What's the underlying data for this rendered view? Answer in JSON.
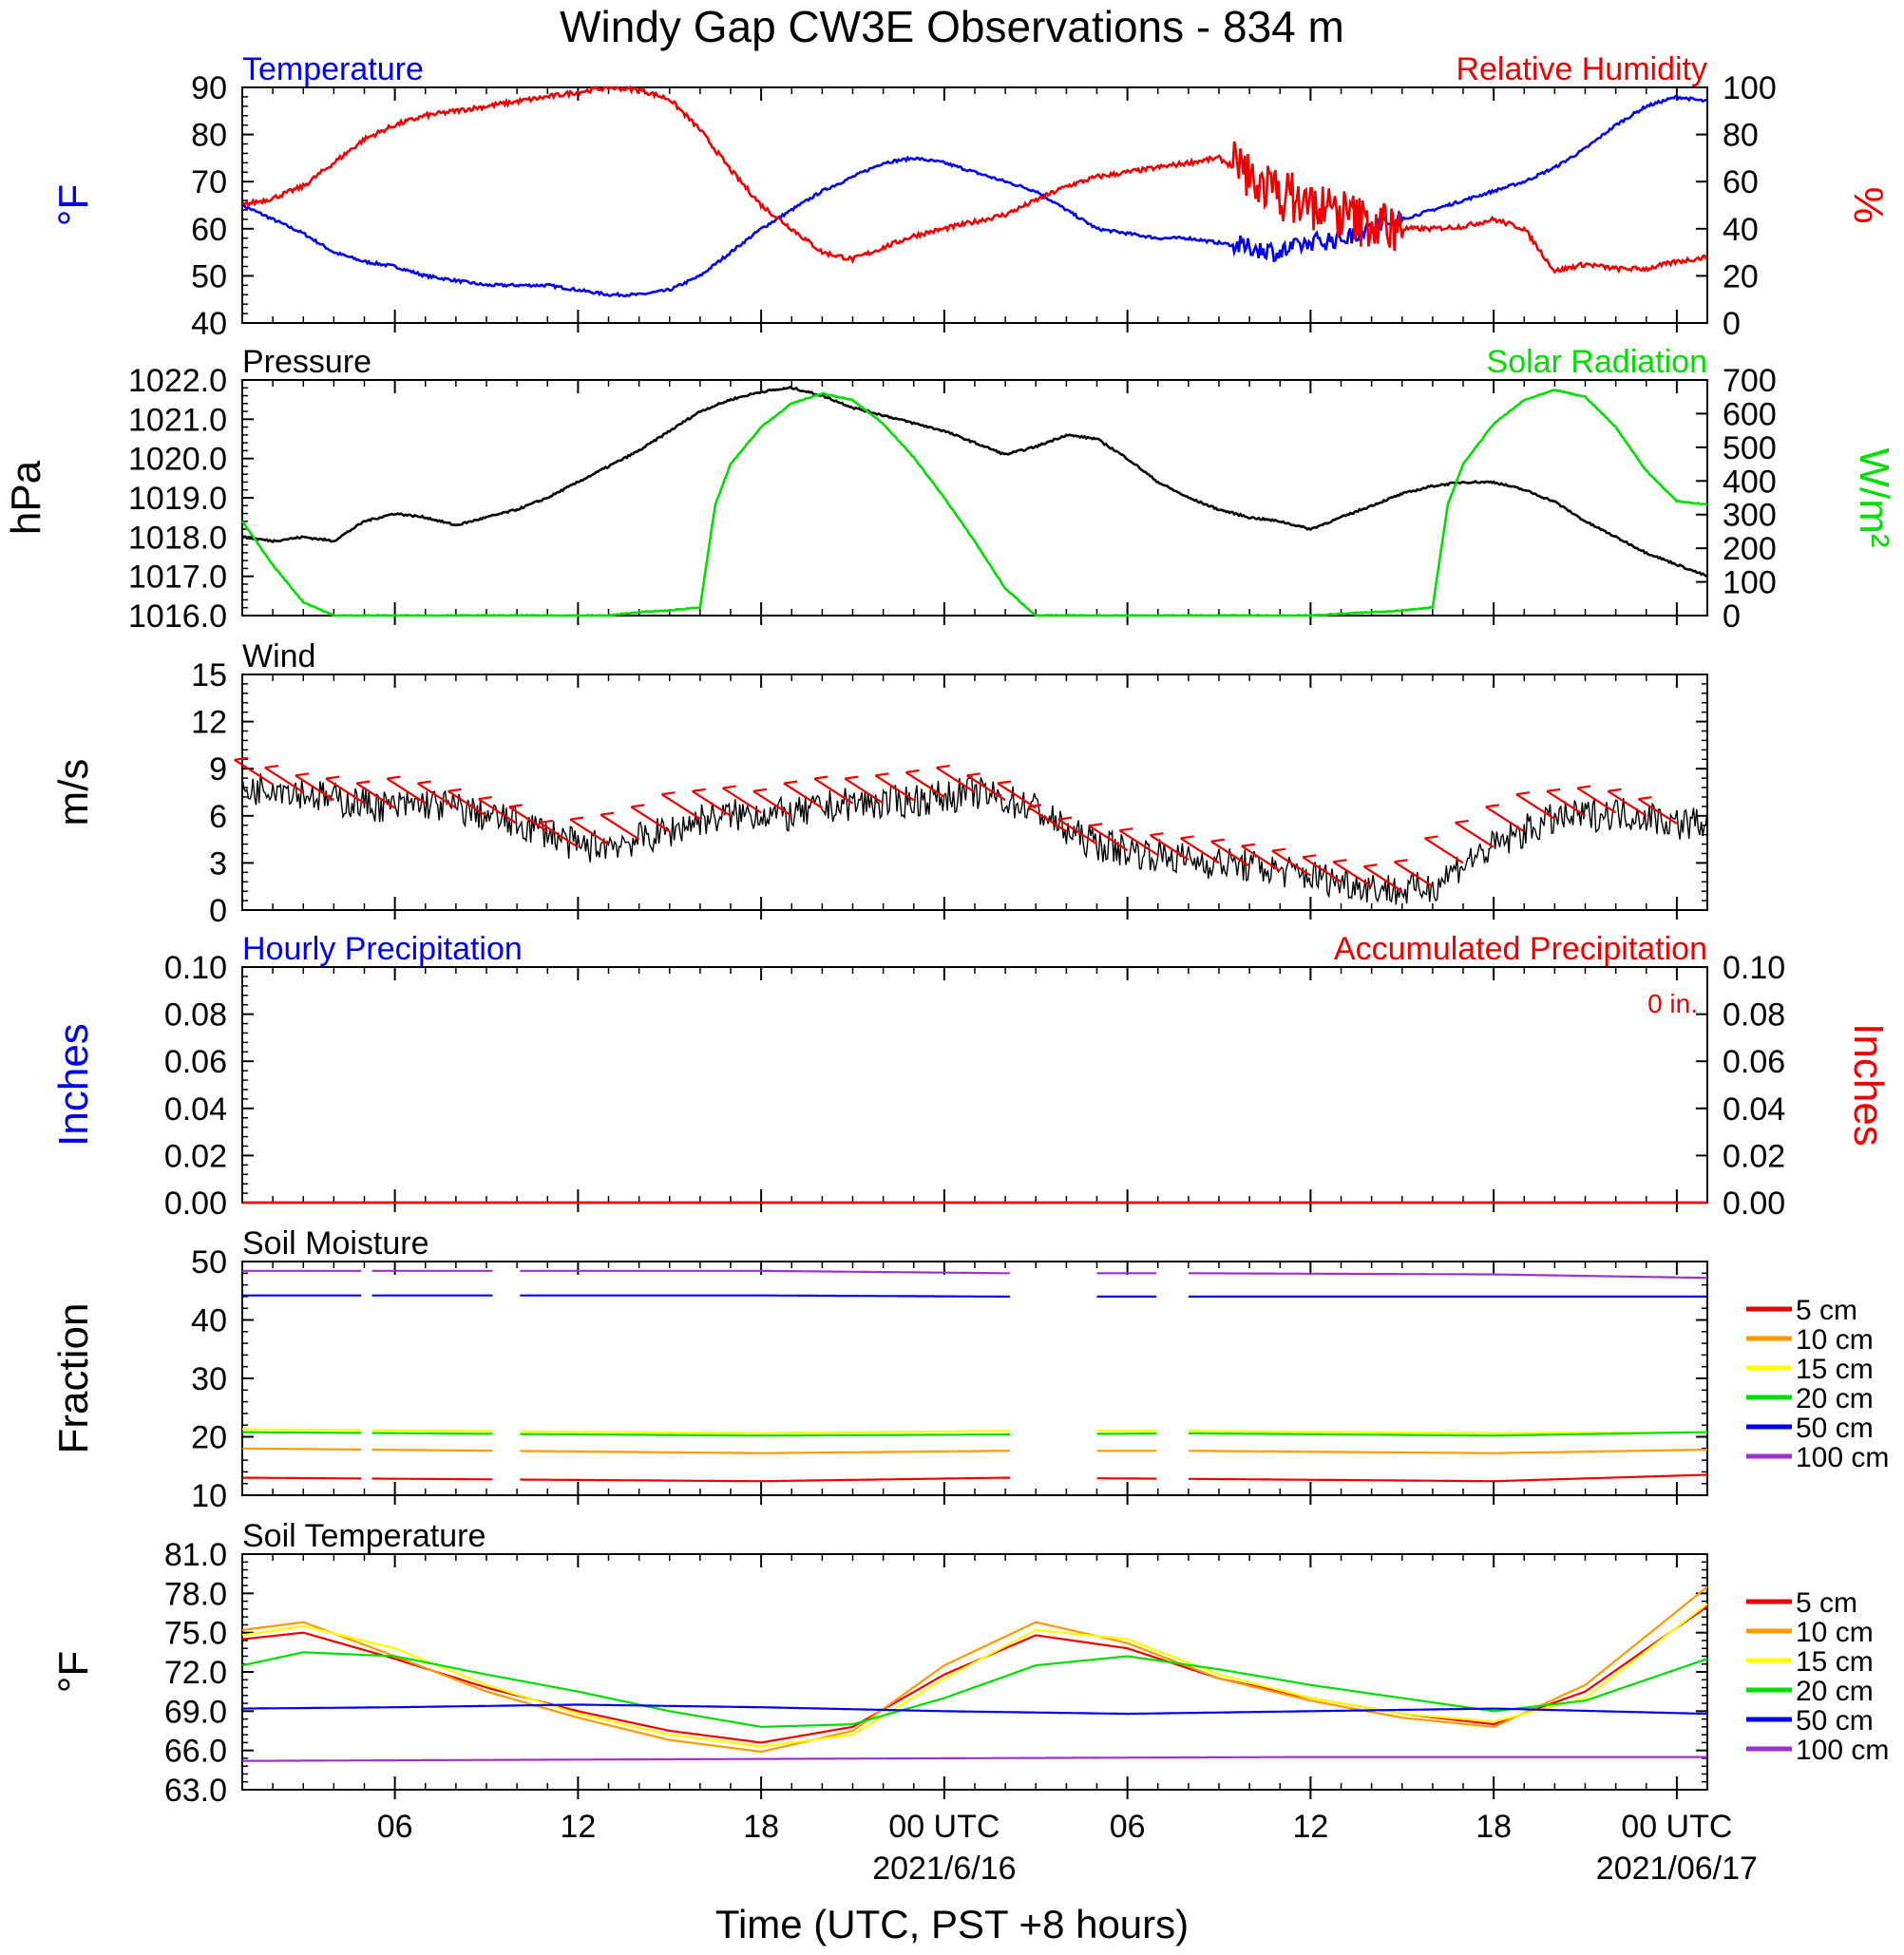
{
  "title": "Windy Gap CW3E Observations - 834 m",
  "x_axis": {
    "label": "Time (UTC, PST +8 hours)",
    "tick_labels": [
      "06",
      "12",
      "18",
      "00 UTC",
      "06",
      "12",
      "18",
      "00 UTC"
    ],
    "tick_hours": [
      6,
      12,
      18,
      24,
      30,
      36,
      42,
      48
    ],
    "dates": [
      {
        "hour": 24,
        "text": "2021/6/16"
      },
      {
        "hour": 48,
        "text": "2021/06/17"
      }
    ],
    "range_hours": [
      1,
      49
    ]
  },
  "colors": {
    "blue": "#0000ee",
    "red": "#ee0000",
    "green": "#00dd00",
    "black": "#000000",
    "orange": "#ff9900",
    "yellow": "#ffff00",
    "purple": "#9933cc"
  },
  "chart_data": [
    {
      "type": "line",
      "id": "temp_rh",
      "left_title": "Temperature",
      "right_title": "Relative Humidity",
      "ylabel_left": "°F",
      "ylabel_right": "%",
      "ylim_left": [
        40,
        90
      ],
      "ylim_right": [
        0,
        100
      ],
      "yticks_left": [
        "90",
        "80",
        "70",
        "60",
        "50",
        "40"
      ],
      "yticks_right": [
        "100",
        "80",
        "60",
        "40",
        "20",
        "0"
      ],
      "series": [
        {
          "axis": "left",
          "color": "#0000ee",
          "x": [
            1,
            2,
            3,
            4,
            5,
            6,
            7,
            8,
            9,
            10,
            11,
            12,
            13,
            14,
            15,
            16,
            17,
            18,
            19,
            20,
            21,
            22,
            23,
            24,
            25,
            26,
            27,
            28,
            29,
            30,
            31,
            32,
            33,
            34,
            35,
            36,
            37,
            38,
            39,
            40,
            41,
            42,
            43,
            44,
            45,
            46,
            47,
            48,
            49
          ],
          "y": [
            65,
            62,
            59,
            55,
            53,
            52,
            50,
            49,
            48,
            48,
            48,
            47,
            46,
            46,
            47,
            50,
            55,
            60,
            64,
            68,
            71,
            74,
            75,
            74,
            72,
            70,
            68,
            64,
            60,
            59,
            58,
            58,
            57,
            56,
            55,
            57,
            58,
            60,
            62,
            64,
            66,
            68,
            70,
            73,
            77,
            82,
            86,
            88,
            87
          ]
        },
        {
          "axis": "right",
          "color": "#ee0000",
          "x": [
            1,
            2,
            3,
            4,
            5,
            6,
            7,
            8,
            9,
            10,
            11,
            12,
            13,
            14,
            15,
            16,
            17,
            18,
            19,
            20,
            21,
            22,
            23,
            24,
            25,
            26,
            27,
            28,
            29,
            30,
            31,
            32,
            33,
            34,
            35,
            36,
            37,
            38,
            39,
            40,
            41,
            42,
            43,
            44,
            45,
            46,
            47,
            48,
            49
          ],
          "y": [
            50,
            53,
            58,
            68,
            78,
            84,
            88,
            90,
            92,
            94,
            96,
            98,
            100,
            99,
            95,
            82,
            65,
            50,
            40,
            30,
            27,
            32,
            37,
            40,
            43,
            46,
            52,
            58,
            62,
            64,
            66,
            68,
            70,
            62,
            55,
            50,
            46,
            42,
            40,
            40,
            41,
            44,
            40,
            22,
            25,
            23,
            23,
            26,
            28
          ]
        }
      ]
    },
    {
      "type": "line",
      "id": "pressure_solar",
      "left_title": "Pressure",
      "right_title": "Solar Radiation",
      "ylabel_left": "hPa",
      "ylabel_right": "W/m²",
      "ylim_left": [
        1016,
        1022
      ],
      "ylim_right": [
        0,
        700
      ],
      "yticks_left": [
        "1022.0",
        "1021.0",
        "1020.0",
        "1019.0",
        "1018.0",
        "1017.0",
        "1016.0"
      ],
      "yticks_right": [
        "700",
        "600",
        "500",
        "400",
        "300",
        "200",
        "100",
        "0"
      ],
      "series": [
        {
          "axis": "left",
          "color": "#000000",
          "x": [
            1,
            2,
            3,
            4,
            5,
            6,
            7,
            8,
            9,
            10,
            11,
            12,
            13,
            14,
            15,
            16,
            17,
            18,
            19,
            20,
            21,
            22,
            23,
            24,
            25,
            26,
            27,
            28,
            29,
            30,
            31,
            32,
            33,
            34,
            35,
            36,
            37,
            38,
            39,
            40,
            41,
            42,
            43,
            44,
            45,
            46,
            47,
            48,
            49
          ],
          "y": [
            1018.0,
            1017.9,
            1018.0,
            1017.9,
            1018.4,
            1018.6,
            1018.5,
            1018.3,
            1018.5,
            1018.7,
            1019.0,
            1019.4,
            1019.8,
            1020.2,
            1020.7,
            1021.2,
            1021.5,
            1021.7,
            1021.8,
            1021.6,
            1021.3,
            1021.1,
            1020.9,
            1020.7,
            1020.4,
            1020.1,
            1020.3,
            1020.6,
            1020.5,
            1020.0,
            1019.4,
            1019.0,
            1018.7,
            1018.5,
            1018.4,
            1018.2,
            1018.5,
            1018.8,
            1019.1,
            1019.3,
            1019.4,
            1019.4,
            1019.2,
            1018.9,
            1018.4,
            1018.0,
            1017.6,
            1017.3,
            1017.0
          ]
        },
        {
          "axis": "right",
          "color": "#00dd00",
          "x": [
            1,
            2,
            3,
            4,
            5,
            6,
            7,
            8,
            9,
            10,
            11,
            12,
            13,
            14,
            15,
            16,
            16.5,
            17,
            18,
            19,
            20,
            21,
            22,
            23,
            24,
            25,
            26,
            27,
            28,
            29,
            30,
            31,
            32,
            33,
            34,
            35,
            36,
            37,
            38,
            39,
            40,
            40.5,
            41,
            42,
            43,
            44,
            45,
            46,
            47,
            48,
            49
          ],
          "y": [
            280,
            150,
            40,
            0,
            0,
            0,
            0,
            0,
            0,
            0,
            0,
            0,
            0,
            10,
            15,
            25,
            330,
            450,
            560,
            630,
            660,
            640,
            570,
            470,
            350,
            220,
            80,
            0,
            0,
            0,
            0,
            0,
            0,
            0,
            0,
            0,
            0,
            5,
            10,
            15,
            25,
            330,
            450,
            570,
            640,
            670,
            650,
            560,
            430,
            340,
            330
          ]
        }
      ]
    },
    {
      "type": "line",
      "id": "wind",
      "left_title": "Wind",
      "ylabel_left": "m/s",
      "ylim_left": [
        0,
        15
      ],
      "yticks_left": [
        "15",
        "12",
        "9",
        "6",
        "3",
        "0"
      ],
      "series": [
        {
          "axis": "left",
          "color": "#000000",
          "x": [
            1,
            2,
            3,
            4,
            5,
            6,
            7,
            8,
            9,
            10,
            11,
            12,
            13,
            14,
            15,
            16,
            17,
            18,
            19,
            20,
            21,
            22,
            23,
            24,
            25,
            26,
            27,
            28,
            29,
            30,
            31,
            32,
            33,
            34,
            35,
            36,
            37,
            38,
            39,
            40,
            41,
            42,
            43,
            44,
            45,
            46,
            47,
            48,
            49
          ],
          "y": [
            7.5,
            8.0,
            7.5,
            7.0,
            6.8,
            6.5,
            6.8,
            6.5,
            6.0,
            5.5,
            5.0,
            4.0,
            4.2,
            4.5,
            5.0,
            5.8,
            6.0,
            6.2,
            6.0,
            6.5,
            6.8,
            6.8,
            7.0,
            7.2,
            7.5,
            7.0,
            6.5,
            5.0,
            4.2,
            3.8,
            3.5,
            3.2,
            3.0,
            2.8,
            2.5,
            2.2,
            1.8,
            1.5,
            1.2,
            1.5,
            3.0,
            4.0,
            5.0,
            5.8,
            6.0,
            6.2,
            6.0,
            5.5,
            5.6
          ]
        }
      ],
      "barbs": {
        "color": "#ee0000",
        "hours": [
          2,
          3,
          4,
          5,
          6,
          7,
          8,
          9,
          10,
          11,
          12,
          13,
          14,
          15,
          16,
          17,
          18,
          19,
          20,
          21,
          22,
          23,
          24,
          25,
          26,
          27,
          28,
          29,
          30,
          31,
          32,
          33,
          34,
          35,
          36,
          37,
          38,
          39,
          40,
          41,
          42,
          43,
          44,
          45,
          46,
          47,
          48
        ]
      }
    },
    {
      "type": "line",
      "id": "precip",
      "left_title": "Hourly Precipitation",
      "right_title": "Accumulated Precipitation",
      "annotation": "0 in.",
      "ylabel_left": "Inches",
      "ylabel_right": "Inches",
      "ylim_left": [
        0,
        0.1
      ],
      "ylim_right": [
        0,
        0.1
      ],
      "yticks_left": [
        "0.10",
        "0.08",
        "0.06",
        "0.04",
        "0.02",
        "0.00"
      ],
      "yticks_right": [
        "0.10",
        "0.08",
        "0.06",
        "0.04",
        "0.02",
        "0.00"
      ],
      "series": [
        {
          "axis": "left",
          "color": "#0000ee",
          "x": [
            1,
            49
          ],
          "y": [
            0,
            0
          ]
        },
        {
          "axis": "right",
          "color": "#ee0000",
          "x": [
            1,
            49
          ],
          "y": [
            0,
            0
          ]
        }
      ]
    },
    {
      "type": "line",
      "id": "soil_moisture",
      "left_title": "Soil Moisture",
      "ylabel_left": "Fraction",
      "ylim_left": [
        10,
        50
      ],
      "yticks_left": [
        "50",
        "40",
        "30",
        "20",
        "10"
      ],
      "gaps_hours": [
        [
          4.9,
          5.2
        ],
        [
          9.2,
          10.1
        ],
        [
          26.2,
          29.0
        ],
        [
          31.0,
          32.0
        ]
      ],
      "legend": [
        "5 cm",
        "10 cm",
        "15 cm",
        "20 cm",
        "50 cm",
        "100 cm"
      ],
      "series": [
        {
          "name": "5 cm",
          "color": "#ee0000",
          "x": [
            1,
            18,
            26,
            32,
            42,
            49
          ],
          "y": [
            13.0,
            12.4,
            13.0,
            12.8,
            12.4,
            13.5
          ]
        },
        {
          "name": "10 cm",
          "color": "#ff9900",
          "x": [
            1,
            18,
            26,
            32,
            42,
            49
          ],
          "y": [
            18.0,
            17.2,
            17.6,
            17.6,
            17.2,
            17.8
          ]
        },
        {
          "name": "15 cm",
          "color": "#ffff00",
          "x": [
            1,
            18,
            26,
            32,
            42,
            49
          ],
          "y": [
            21.3,
            20.6,
            21.0,
            21.0,
            20.6,
            20.8
          ]
        },
        {
          "name": "20 cm",
          "color": "#00dd00",
          "x": [
            1,
            18,
            26,
            32,
            42,
            49
          ],
          "y": [
            20.8,
            20.2,
            20.4,
            20.6,
            20.2,
            20.8
          ]
        },
        {
          "name": "50 cm",
          "color": "#0000ee",
          "x": [
            1,
            18,
            26,
            32,
            42,
            49
          ],
          "y": [
            44.2,
            44.2,
            44.0,
            44.0,
            44.0,
            44.0
          ]
        },
        {
          "name": "100 cm",
          "color": "#9933cc",
          "x": [
            1,
            18,
            26,
            32,
            42,
            49
          ],
          "y": [
            48.4,
            48.4,
            48.0,
            48.0,
            47.8,
            47.2
          ]
        }
      ]
    },
    {
      "type": "line",
      "id": "soil_temperature",
      "left_title": "Soil Temperature",
      "ylabel_left": "°F",
      "ylim_left": [
        63,
        81
      ],
      "yticks_left": [
        "81.0",
        "78.0",
        "75.0",
        "72.0",
        "69.0",
        "66.0",
        "63.0"
      ],
      "legend": [
        "5 cm",
        "10 cm",
        "15 cm",
        "20 cm",
        "50 cm",
        "100 cm"
      ],
      "series": [
        {
          "name": "5 cm",
          "color": "#ee0000",
          "x": [
            1,
            3,
            6,
            9,
            12,
            15,
            18,
            21,
            24,
            27,
            30,
            33,
            36,
            39,
            42,
            45,
            49
          ],
          "y": [
            74.5,
            75.0,
            73.0,
            70.8,
            69.0,
            67.5,
            66.6,
            67.8,
            71.8,
            74.8,
            73.8,
            71.5,
            70.0,
            68.8,
            68.0,
            70.5,
            77.0
          ]
        },
        {
          "name": "10 cm",
          "color": "#ff9900",
          "x": [
            1,
            3,
            6,
            9,
            12,
            15,
            18,
            21,
            24,
            27,
            30,
            33,
            36,
            39,
            42,
            45,
            49
          ],
          "y": [
            75.2,
            75.8,
            73.2,
            70.5,
            68.5,
            66.8,
            65.9,
            67.5,
            72.5,
            75.8,
            74.2,
            71.5,
            69.8,
            68.5,
            67.8,
            71.0,
            78.5
          ]
        },
        {
          "name": "15 cm",
          "color": "#ffff00",
          "x": [
            1,
            3,
            6,
            9,
            12,
            15,
            18,
            21,
            24,
            27,
            30,
            33,
            36,
            39,
            42,
            45,
            49
          ],
          "y": [
            74.8,
            75.5,
            73.8,
            71.0,
            68.8,
            67.2,
            66.3,
            67.2,
            71.5,
            75.2,
            74.5,
            71.8,
            70.0,
            68.8,
            68.2,
            70.0,
            77.2
          ]
        },
        {
          "name": "20 cm",
          "color": "#00dd00",
          "x": [
            1,
            3,
            6,
            9,
            12,
            15,
            18,
            21,
            24,
            27,
            30,
            33,
            36,
            39,
            42,
            45,
            49
          ],
          "y": [
            72.5,
            73.5,
            73.2,
            71.8,
            70.5,
            69.0,
            67.8,
            68.0,
            70.0,
            72.5,
            73.2,
            72.2,
            71.0,
            70.0,
            69.0,
            69.8,
            73.0
          ]
        },
        {
          "name": "50 cm",
          "color": "#0000ee",
          "x": [
            1,
            6,
            12,
            18,
            24,
            30,
            36,
            42,
            49
          ],
          "y": [
            69.2,
            69.3,
            69.5,
            69.3,
            69.0,
            68.8,
            69.0,
            69.2,
            68.8
          ]
        },
        {
          "name": "100 cm",
          "color": "#9933cc",
          "x": [
            1,
            12,
            24,
            36,
            49
          ],
          "y": [
            65.2,
            65.3,
            65.4,
            65.5,
            65.5
          ]
        }
      ]
    }
  ]
}
